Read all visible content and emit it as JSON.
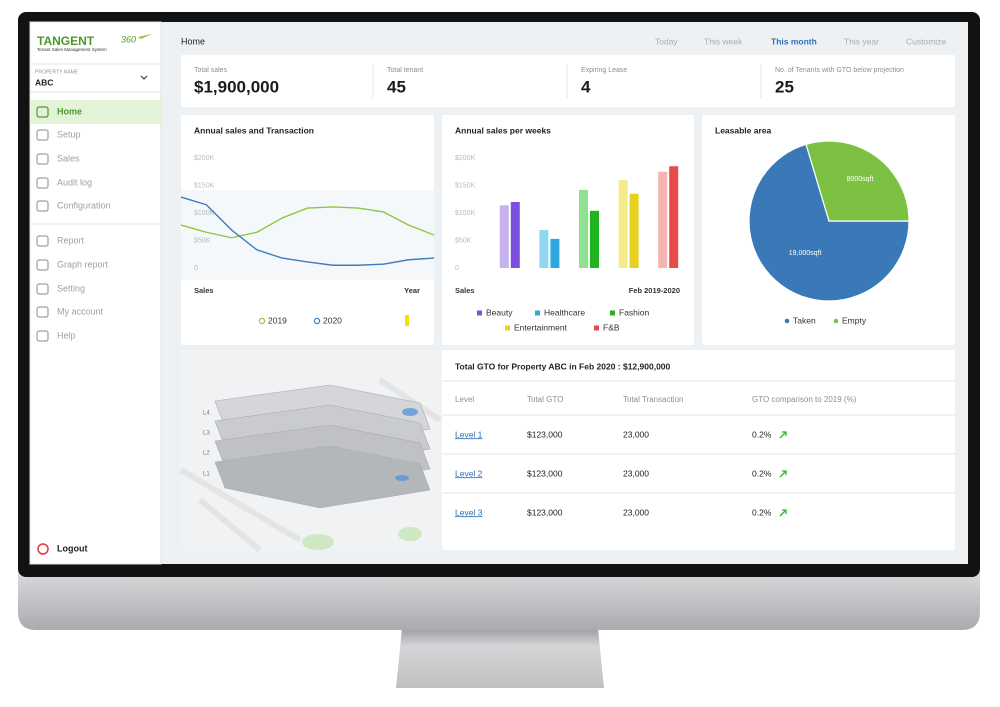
{
  "brand": {
    "name": "TANGENT",
    "version": "360",
    "tagline": "Tenant Sales Management System"
  },
  "property": {
    "label": "PROPERTY NAME",
    "value": "ABC"
  },
  "nav": [
    {
      "label": "Home",
      "active": true
    },
    {
      "label": "Setup"
    },
    {
      "label": "Sales"
    },
    {
      "label": "Audit log"
    },
    {
      "label": "Configuration"
    },
    {
      "label": "Report"
    },
    {
      "label": "Graph report"
    },
    {
      "label": "Setting"
    },
    {
      "label": "My account"
    },
    {
      "label": "Help"
    }
  ],
  "logout": "Logout",
  "header": {
    "title": "Home",
    "filters": [
      {
        "label": "Today"
      },
      {
        "label": "This week"
      },
      {
        "label": "This month",
        "active": true
      },
      {
        "label": "This year"
      },
      {
        "label": "Customize"
      }
    ]
  },
  "kpis": [
    {
      "label": "Total sales",
      "value": "$1,900,000"
    },
    {
      "label": "Total tenant",
      "value": "45"
    },
    {
      "label": "Expiring Lease",
      "value": "4"
    },
    {
      "label": "No. of Tenants with GTO below projection",
      "value": "25"
    }
  ],
  "sales_chart": {
    "type": "line",
    "title": "Annual sales and Transaction",
    "x_label": "Sales",
    "x_label_right": "Year",
    "categories": [
      null,
      null,
      null,
      null,
      null,
      null,
      null,
      null,
      null,
      null,
      null
    ],
    "ylim": [
      0,
      200000
    ],
    "yticks": [
      0,
      {
        "value": 50000,
        "label": "$50K"
      },
      {
        "value": 100000,
        "label": "$100K"
      },
      {
        "value": 150000,
        "label": "$150K"
      },
      {
        "value": 200000,
        "label": "$200K"
      }
    ],
    "series": [
      {
        "name": "2019",
        "color": "#8dc63f",
        "values": [
          78000,
          65000,
          55000,
          65000,
          91000,
          109000,
          111000,
          109000,
          102000,
          78000,
          60000
        ]
      },
      {
        "name": "2020",
        "color": "#3f7cbf",
        "values": [
          129000,
          115000,
          69000,
          33000,
          18000,
          11000,
          5000,
          5000,
          7000,
          15000,
          18000
        ]
      }
    ]
  },
  "weekly_chart": {
    "type": "bar",
    "title": "Annual sales per weeks",
    "x_label": "Sales",
    "x_label_right": "Feb 2019-2020",
    "ylim": [
      0,
      200000
    ],
    "yticks": [
      0,
      {
        "value": 50000,
        "label": "$50K"
      },
      {
        "value": 100000,
        "label": "$100K"
      },
      {
        "value": 150000,
        "label": "$150K"
      },
      {
        "value": 200000,
        "label": "$200K"
      }
    ],
    "series": [
      {
        "name": "Beauty",
        "colors": [
          "#c7b2f0",
          "#7b4fe0"
        ],
        "values": [
          114000,
          120000
        ]
      },
      {
        "name": "Healthcare",
        "colors": [
          "#8fd6f0",
          "#2fa8e0"
        ],
        "values": [
          69000,
          53000
        ]
      },
      {
        "name": "Fashion",
        "colors": [
          "#8fe08f",
          "#1fb31f"
        ],
        "values": [
          142000,
          104000
        ]
      },
      {
        "name": "Entertainment",
        "colors": [
          "#f5eb8a",
          "#e6d21e"
        ],
        "values": [
          160000,
          135000
        ]
      },
      {
        "name": "F&B",
        "colors": [
          "#f5b3b3",
          "#e84a4a"
        ],
        "values": [
          175000,
          185000
        ]
      }
    ]
  },
  "area_chart": {
    "type": "pie",
    "title": "Leasable area",
    "labels": [
      "Taken",
      "Empty"
    ],
    "values": [
      19000,
      8000
    ],
    "value_labels": [
      "19,000sqft",
      "8000sqft"
    ],
    "colors": [
      "#3a78b8",
      "#7cc142"
    ]
  },
  "map": {
    "floors": [
      "L4",
      "L3",
      "L2",
      "L1"
    ]
  },
  "table": {
    "title": "Total GTO for Property ABC in Feb 2020 : $12,900,000",
    "columns": [
      "Level",
      "Total GTO",
      "Total Transaction",
      "GTO comparison to 2019 (%)"
    ],
    "rows": [
      [
        "Level 1",
        "$123,000",
        "23,000",
        "0.2%"
      ],
      [
        "Level 2",
        "$123,000",
        "23,000",
        "0.2%"
      ],
      [
        "Level 3",
        "$123,000",
        "23,000",
        "0.2%"
      ]
    ]
  }
}
